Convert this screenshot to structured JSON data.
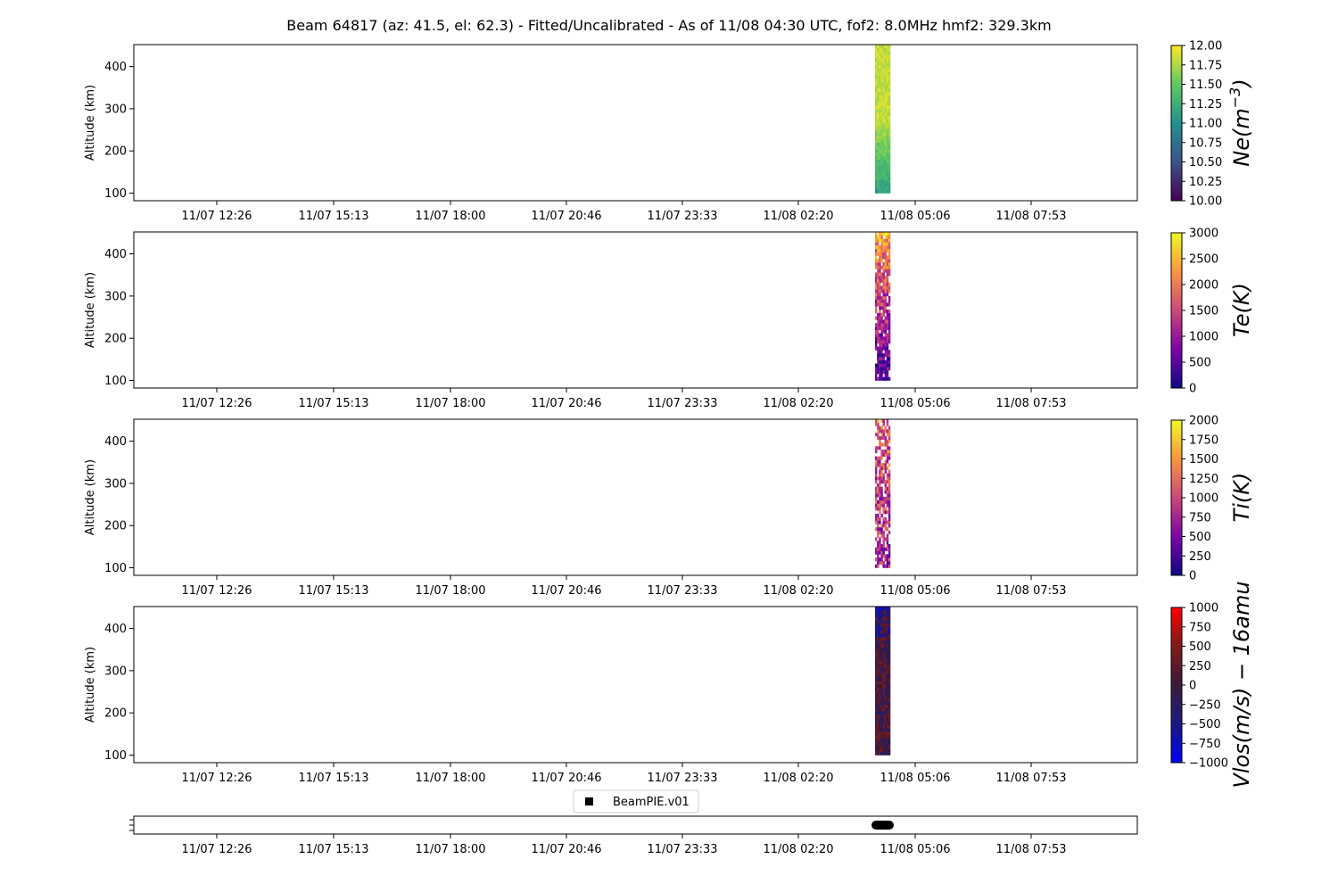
{
  "title": "Beam 64817 (az: 41.5, el: 62.3) - Fitted/Uncalibrated - As of 11/08 04:30 UTC, fof2: 8.0MHz  hmf2: 329.3km",
  "x_tick_labels": [
    "11/07 12:26",
    "11/07 15:13",
    "11/07 18:00",
    "11/07 20:46",
    "11/07 23:33",
    "11/08 02:20",
    "11/08 05:06",
    "11/08 07:53"
  ],
  "y_tick_labels": [
    "100",
    "200",
    "300",
    "400"
  ],
  "ylabel": "Altitude (km)",
  "legend_label": "BeamPIE.v01",
  "chart_data": [
    {
      "type": "heatmap",
      "ylabel": "Altitude (km)",
      "ylim": [
        82,
        452
      ],
      "xlim_hours": [
        -1.0,
        22.0
      ],
      "data_time_range": [
        "11/08 03:36",
        "11/08 03:57"
      ],
      "data_altitude_range_km": [
        100,
        452
      ],
      "colorbar": {
        "label": "Ne(m^-3)",
        "colormap": "viridis",
        "range": [
          10.0,
          12.0
        ],
        "ticks": [
          "10.00",
          "10.25",
          "10.50",
          "10.75",
          "11.00",
          "11.25",
          "11.50",
          "11.75",
          "12.00"
        ]
      }
    },
    {
      "type": "heatmap",
      "ylabel": "Altitude (km)",
      "ylim": [
        82,
        452
      ],
      "data_time_range": [
        "11/08 03:36",
        "11/08 03:57"
      ],
      "data_altitude_range_km": [
        100,
        452
      ],
      "colorbar": {
        "label": "Te(K)",
        "colormap": "plasma",
        "range": [
          0,
          3000
        ],
        "ticks": [
          "0",
          "500",
          "1000",
          "1500",
          "2000",
          "2500",
          "3000"
        ]
      }
    },
    {
      "type": "heatmap",
      "ylabel": "Altitude (km)",
      "ylim": [
        82,
        452
      ],
      "data_time_range": [
        "11/08 03:36",
        "11/08 03:57"
      ],
      "data_altitude_range_km": [
        100,
        452
      ],
      "colorbar": {
        "label": "Ti(K)",
        "colormap": "plasma",
        "range": [
          0,
          2000
        ],
        "ticks": [
          "0",
          "250",
          "500",
          "750",
          "1000",
          "1250",
          "1500",
          "1750",
          "2000"
        ]
      }
    },
    {
      "type": "heatmap",
      "ylabel": "Altitude (km)",
      "ylim": [
        82,
        452
      ],
      "data_time_range": [
        "11/08 03:36",
        "11/08 03:57"
      ],
      "data_altitude_range_km": [
        100,
        452
      ],
      "colorbar": {
        "label": "Vlos(m/s) - 16amu",
        "colormap": "blue-red",
        "range": [
          -1000,
          1000
        ],
        "ticks": [
          "−1000",
          "−750",
          "−500",
          "−250",
          "0",
          "250",
          "500",
          "750",
          "1000"
        ]
      }
    }
  ],
  "colors": {
    "viridis": [
      "#440154",
      "#3b528b",
      "#21918c",
      "#5ec962",
      "#fde725"
    ],
    "plasma": [
      "#0d0887",
      "#7e03a8",
      "#cc4778",
      "#f89540",
      "#f0f921"
    ],
    "blue-red": [
      "#0000ff",
      "#1a1a80",
      "#3a1a3a",
      "#801a1a",
      "#ff0000"
    ]
  }
}
